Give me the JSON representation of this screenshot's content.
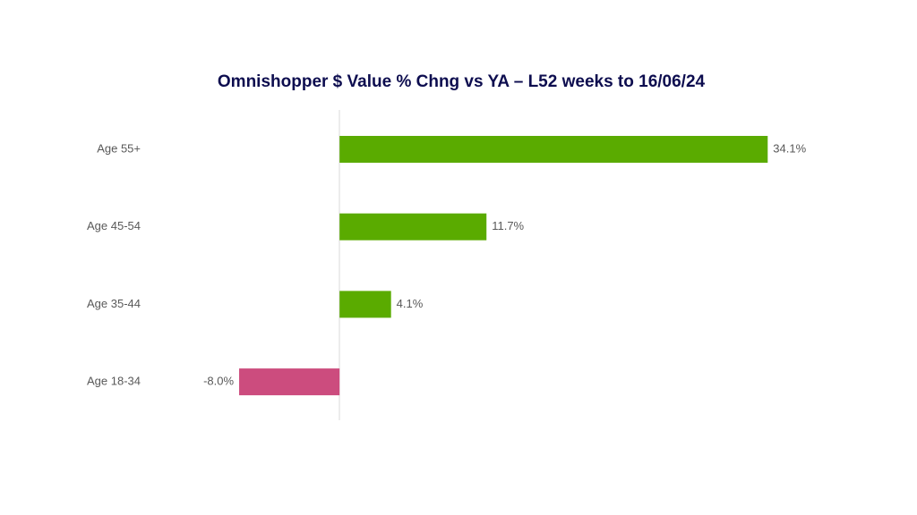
{
  "chart_data": {
    "type": "hbar",
    "title": "Omnishopper $ Value % Chng vs YA – L52 weeks to 16/06/24",
    "categories": [
      "Age 55+",
      "Age 45-54",
      "Age 35-44",
      "Age 18-34"
    ],
    "values": [
      34.1,
      11.7,
      4.1,
      -8.0
    ],
    "value_labels": [
      "34.1%",
      "11.7%",
      "4.1%",
      "-8.0%"
    ],
    "colors": [
      "#5aab00",
      "#5aab00",
      "#5aab00",
      "#cc4c7e"
    ],
    "xlim": [
      -10,
      40
    ]
  }
}
